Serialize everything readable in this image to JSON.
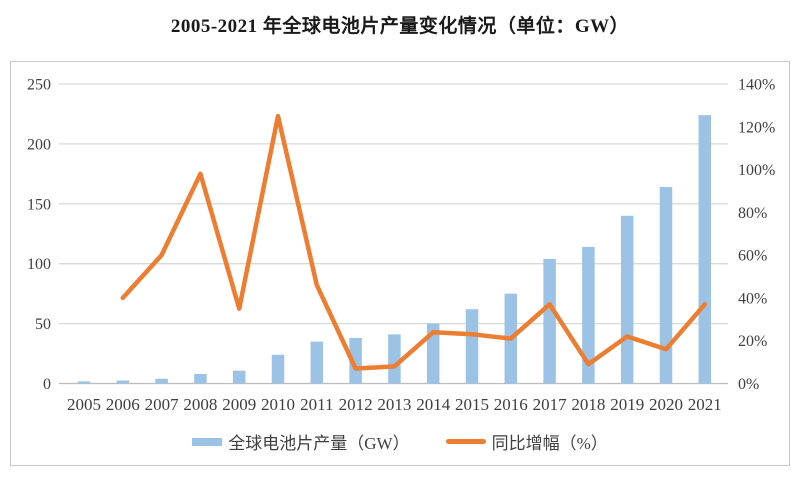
{
  "title": "2005-2021 年全球电池片产量变化情况（单位：GW）",
  "legend": {
    "bar_label": "全球电池片产量（GW）",
    "line_label": "同比增幅（%）"
  },
  "colors": {
    "bar": "#9cc3e6",
    "line": "#ed7d31",
    "grid": "#d9d9d9",
    "baseline": "#bdbdbd",
    "axis_text": "#3f3f3f"
  },
  "chart_data": {
    "type": "bar",
    "subtype": "combo-bar-line",
    "title": "2005-2021 年全球电池片产量变化情况（单位：GW）",
    "categories": [
      "2005",
      "2006",
      "2007",
      "2008",
      "2009",
      "2010",
      "2011",
      "2012",
      "2013",
      "2014",
      "2015",
      "2016",
      "2017",
      "2018",
      "2019",
      "2020",
      "2021"
    ],
    "series": [
      {
        "name": "全球电池片产量（GW）",
        "type": "bar",
        "axis": "left",
        "unit": "GW",
        "values": [
          1.8,
          2.5,
          4,
          8,
          10.7,
          24,
          35,
          38,
          41,
          50,
          62,
          75,
          104,
          114,
          140,
          164,
          224
        ]
      },
      {
        "name": "同比增幅（%）",
        "type": "line",
        "axis": "right",
        "unit": "%",
        "values": [
          null,
          40,
          60,
          98,
          35,
          125,
          46,
          7,
          8,
          24,
          23,
          21,
          37,
          9,
          22,
          16,
          37
        ]
      }
    ],
    "left_axis": {
      "range": [
        0,
        250
      ],
      "ticks": [
        "0",
        "50",
        "100",
        "150",
        "200",
        "250"
      ]
    },
    "right_axis": {
      "range": [
        0,
        140
      ],
      "ticks": [
        "0%",
        "20%",
        "40%",
        "60%",
        "80%",
        "100%",
        "120%",
        "140%"
      ]
    },
    "grid": "horizontal",
    "legend_position": "bottom"
  }
}
